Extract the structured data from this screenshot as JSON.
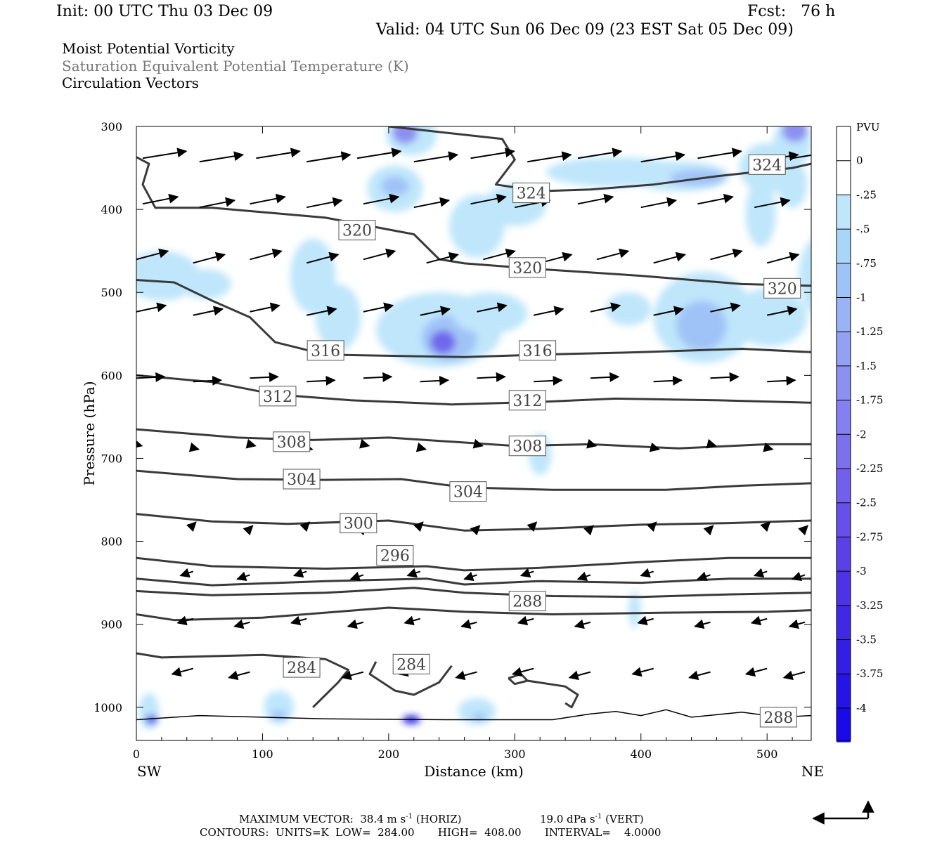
{
  "header": {
    "init": "Init: 00 UTC Thu 03 Dec 09",
    "fcst": "Fcst:   76 h",
    "valid": "Valid: 04 UTC Sun 06 Dec 09 (23 EST Sat 05 Dec 09)"
  },
  "fields": [
    "Moist Potential Vorticity",
    "Saturation Equivalent Potential Temperature (K)",
    "Circulation Vectors"
  ],
  "footer": {
    "max_vector": "MAXIMUM VECTOR:  38.4 m s",
    "horiz": "(HORIZ)",
    "vert_val": "19.0 dPa s",
    "vert": "(VERT)",
    "sup": "-1",
    "contours": "CONTOURS:  UNITS=K  LOW=  284.00       HIGH=  408.00       INTERVAL=    4.0000"
  },
  "chart_data": {
    "type": "cross-section",
    "xlabel": "Distance (km)",
    "ylabel": "Pressure (hPa)",
    "x_end_labels": [
      "SW",
      "NE"
    ],
    "xlim": [
      0,
      535
    ],
    "ylim": [
      1040,
      300
    ],
    "x_ticks": [
      0,
      100,
      200,
      300,
      400,
      500
    ],
    "y_ticks": [
      300,
      400,
      500,
      600,
      700,
      800,
      900,
      1000
    ],
    "colorbar": {
      "title": "PVU",
      "labels": [
        "0",
        "-.25",
        "-.5",
        "-.75",
        "-1",
        "-1.25",
        "-1.5",
        "-1.75",
        "-2",
        "-2.25",
        "-2.5",
        "-2.75",
        "-3",
        "-3.25",
        "-3.5",
        "-3.75",
        "-4"
      ],
      "colors": [
        "#ffffff",
        "#ffffff",
        "#bfe6fb",
        "#a9d6f8",
        "#a0c3f7",
        "#9ab3f5",
        "#93a1f3",
        "#8c90f1",
        "#8480ef",
        "#7c70ed",
        "#7260eb",
        "#6750e9",
        "#5b40e7",
        "#4e33e6",
        "#4028e5",
        "#321ee5",
        "#2614e6",
        "#1a0aea"
      ]
    },
    "contour_labels": [
      {
        "v": "324",
        "x": 313,
        "p": 380
      },
      {
        "v": "324",
        "x": 500,
        "p": 346
      },
      {
        "v": "320",
        "x": 175,
        "p": 425
      },
      {
        "v": "320",
        "x": 310,
        "p": 470
      },
      {
        "v": "320",
        "x": 512,
        "p": 495
      },
      {
        "v": "316",
        "x": 150,
        "p": 570
      },
      {
        "v": "316",
        "x": 318,
        "p": 570
      },
      {
        "v": "312",
        "x": 112,
        "p": 625
      },
      {
        "v": "312",
        "x": 310,
        "p": 630
      },
      {
        "v": "308",
        "x": 123,
        "p": 680
      },
      {
        "v": "308",
        "x": 310,
        "p": 685
      },
      {
        "v": "304",
        "x": 131,
        "p": 725
      },
      {
        "v": "304",
        "x": 263,
        "p": 740
      },
      {
        "v": "300",
        "x": 176,
        "p": 778
      },
      {
        "v": "296",
        "x": 205,
        "p": 817
      },
      {
        "v": "288",
        "x": 310,
        "p": 872
      },
      {
        "v": "284",
        "x": 131,
        "p": 952
      },
      {
        "v": "284",
        "x": 218,
        "p": 948
      },
      {
        "v": "288",
        "x": 509,
        "p": 1012
      }
    ]
  }
}
